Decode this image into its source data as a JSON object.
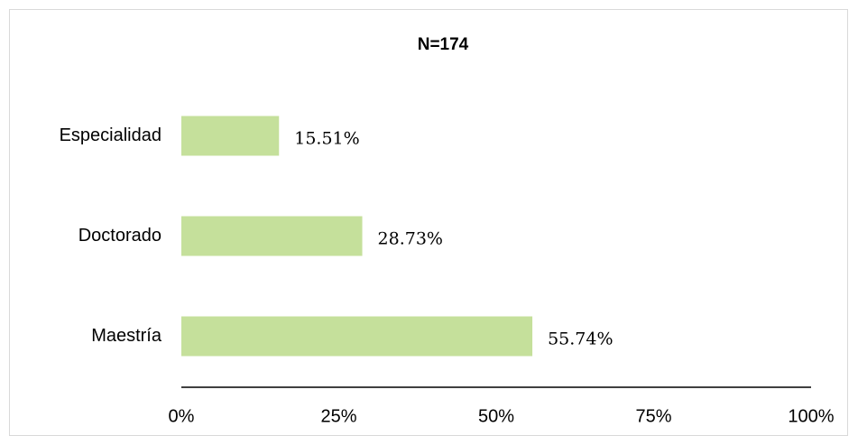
{
  "chart_data": {
    "type": "bar",
    "orientation": "horizontal",
    "title": "N=174",
    "categories": [
      "Especialidad",
      "Doctorado",
      "Maestría"
    ],
    "values": [
      15.51,
      28.73,
      55.74
    ],
    "value_labels": [
      "15.51%",
      "28.73%",
      "55.74%"
    ],
    "color": "#c5e09b",
    "xlim": [
      0,
      100
    ],
    "xticks": [
      {
        "value": 0,
        "label": "0%"
      },
      {
        "value": 25,
        "label": "25%"
      },
      {
        "value": 50,
        "label": "50%"
      },
      {
        "value": 75,
        "label": "75%"
      },
      {
        "value": 100,
        "label": "100%"
      }
    ],
    "grid": false
  }
}
